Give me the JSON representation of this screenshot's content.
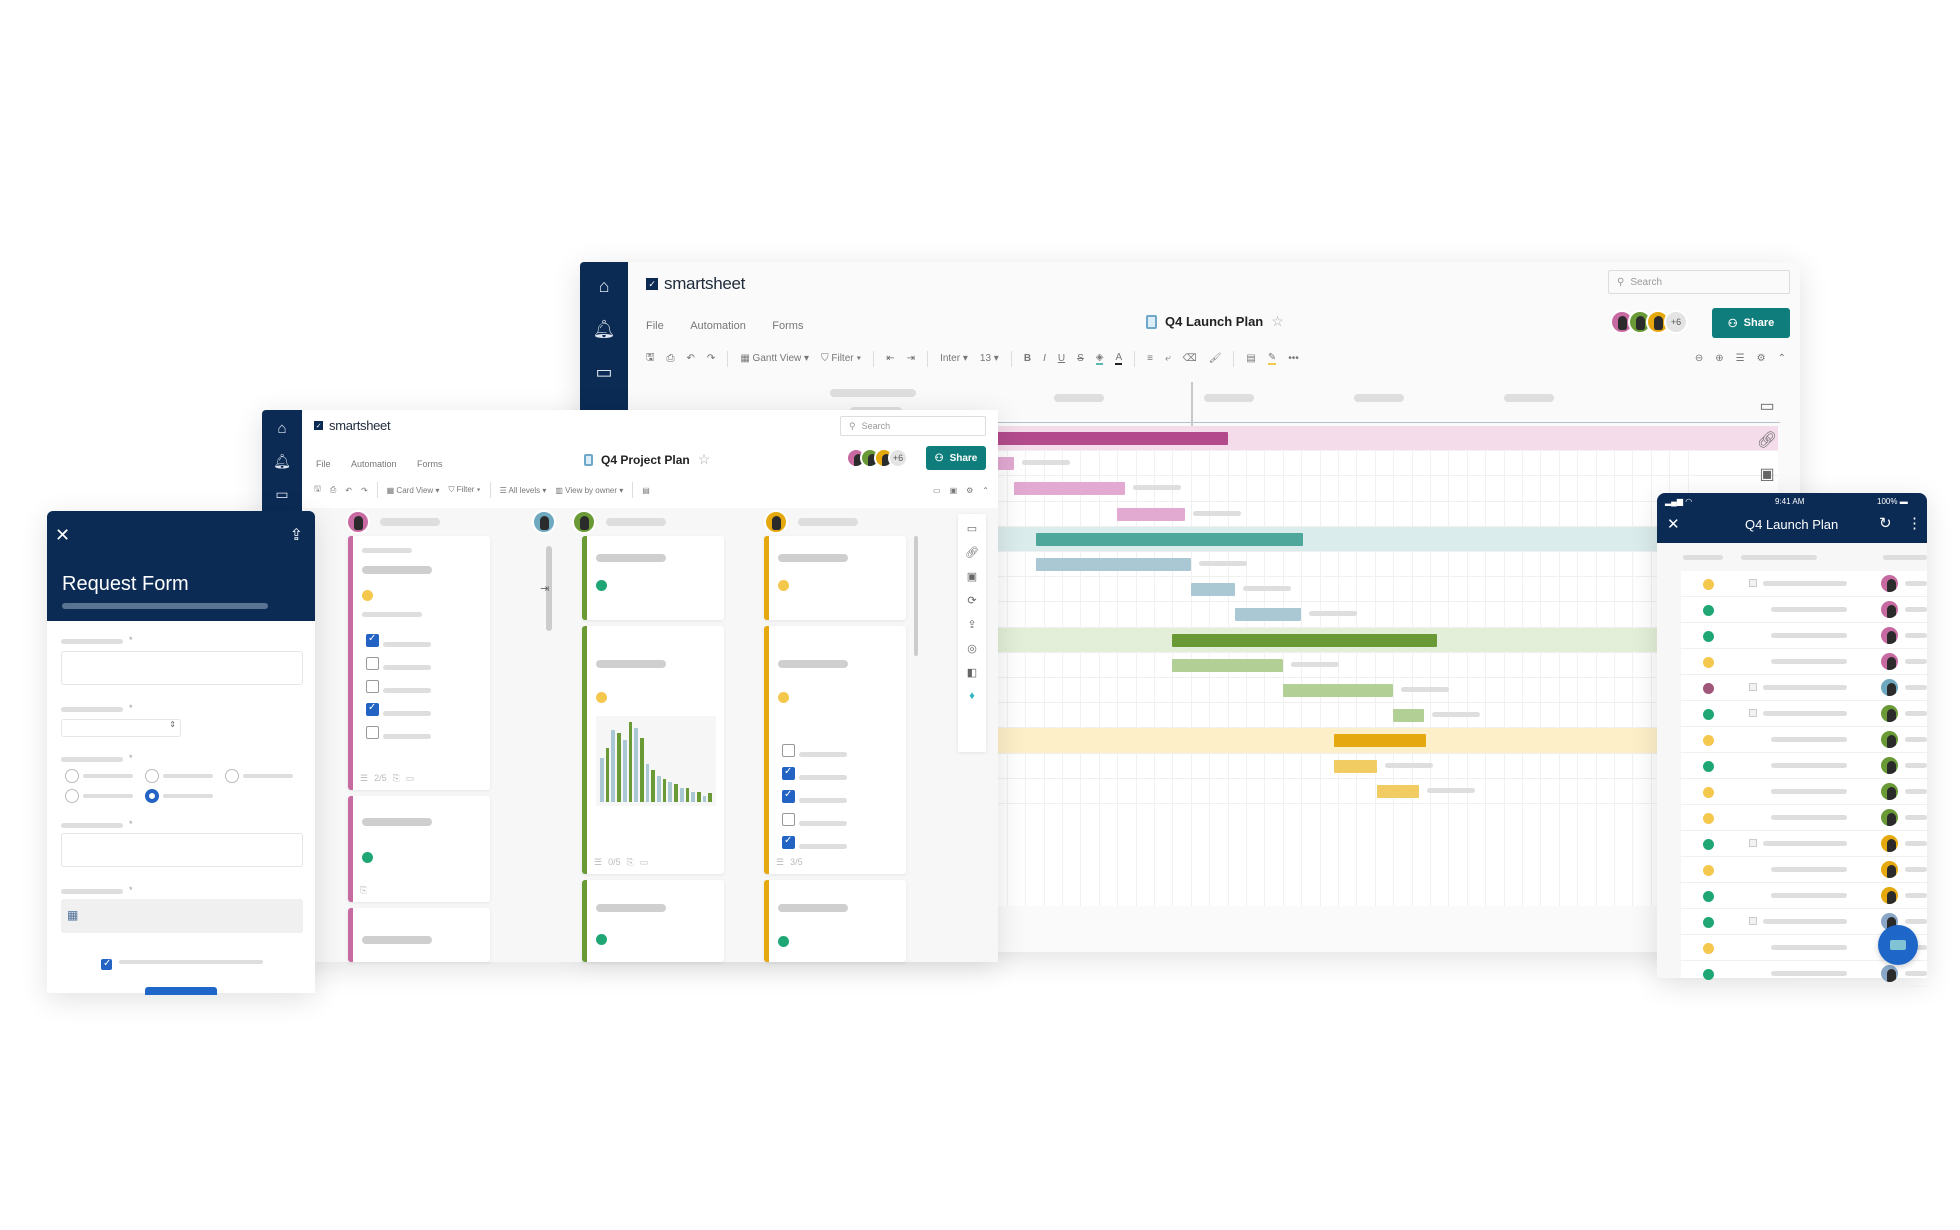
{
  "gantt_window": {
    "brand": "smartsheet",
    "search_placeholder": "Search",
    "menu": [
      "File",
      "Automation",
      "Forms"
    ],
    "sheet_title": "Q4 Launch Plan",
    "collaborators_more": "+6",
    "share_label": "Share",
    "toolbar": {
      "view": "Gantt View",
      "filter": "Filter",
      "font": "Inter",
      "font_size": "13"
    },
    "accent": "#0f7d7b",
    "groups": [
      {
        "color": "#b34a8c",
        "light": "#f4dcea",
        "task_color": "#e2a9d1",
        "avatar_color": "#c86aa2"
      },
      {
        "color": "#4fa79b",
        "light": "#dbecec",
        "task_color": "#a9c8d4",
        "avatar_color": "#6fa9bf"
      },
      {
        "color": "#6a9a36",
        "light": "#e3efd8",
        "task_color": "#b2cf95",
        "avatar_color": "#6a9a36"
      },
      {
        "color": "#e5a90f",
        "light": "#fdf0c8",
        "task_color": "#f0cc63",
        "avatar_color": "#e5a90f"
      }
    ]
  },
  "card_window": {
    "brand": "smartsheet",
    "search_placeholder": "Search",
    "menu": [
      "File",
      "Automation",
      "Forms"
    ],
    "sheet_title": "Q4 Project Plan",
    "collaborators_more": "+6",
    "share_label": "Share",
    "toolbar": {
      "view": "Card View",
      "filter": "Filter",
      "levels": "All levels",
      "group": "View by owner"
    },
    "card_counts": [
      "2/5",
      "0/5",
      "3/5"
    ]
  },
  "request_form": {
    "title": "Request Form",
    "required_marker": "*"
  },
  "mobile": {
    "time": "9:41 AM",
    "battery": "100%",
    "title": "Q4 Launch Plan",
    "status_dots": [
      "y",
      "g",
      "g",
      "y",
      "m",
      "g",
      "y",
      "g",
      "y",
      "y",
      "g",
      "y",
      "g",
      "g",
      "y",
      "g"
    ]
  },
  "chart_data": {
    "type": "bar",
    "title": "",
    "series": [
      {
        "name": "blue",
        "values": [
          55,
          90,
          78,
          92,
          48,
          32,
          25,
          18,
          12,
          8
        ]
      },
      {
        "name": "green",
        "values": [
          68,
          86,
          100,
          80,
          40,
          29,
          22,
          17,
          12,
          11
        ]
      }
    ]
  }
}
